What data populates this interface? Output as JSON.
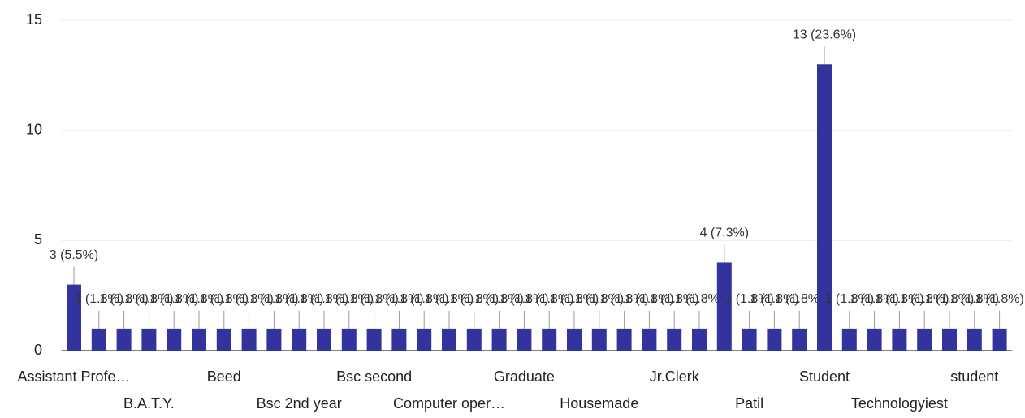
{
  "chart_data": {
    "type": "bar",
    "categories": [
      "Assistant Profe…",
      null,
      null,
      "B.A.T.Y.",
      null,
      null,
      "Beed",
      null,
      null,
      "Bsc 2nd year",
      null,
      null,
      "Bsc second",
      null,
      null,
      "Computer oper…",
      null,
      null,
      "Graduate",
      null,
      null,
      "Housemade",
      null,
      null,
      "Jr.Clerk",
      null,
      null,
      "Patil",
      null,
      null,
      "Student",
      null,
      null,
      "Technologyiest",
      null,
      null,
      "student",
      null
    ],
    "values": [
      3,
      1,
      1,
      1,
      1,
      1,
      1,
      1,
      1,
      1,
      1,
      1,
      1,
      1,
      1,
      1,
      1,
      1,
      1,
      1,
      1,
      1,
      1,
      1,
      1,
      1,
      4,
      1,
      1,
      1,
      13,
      1,
      1,
      1,
      1,
      1,
      1,
      1
    ],
    "value_labels": [
      "3 (5.5%)",
      "1 (1.8%)",
      "1 (1.8%)",
      "1 (1.8%)",
      "1 (1.8%)",
      "1 (1.8%)",
      "1 (1.8%)",
      "1 (1.8%)",
      "1 (1.8%)",
      "1 (1.8%)",
      "1 (1.8%)",
      "1 (1.8%)",
      "1 (1.8%)",
      "1 (1.8%)",
      "1 (1.8%)",
      "1 (1.8%)",
      "1 (1.8%)",
      "1 (1.8%)",
      "1 (1.8%)",
      "1 (1.8%)",
      "1 (1.8%)",
      "1 (1.8%)",
      "1 (1.8%)",
      "1 (1.8%)",
      "1 (1.8%)",
      "1 (1.8%)",
      "4 (7.3%)",
      "1 (1.8%)",
      "1 (1.8%)",
      "1 (1.8%)",
      "13 (23.6%)",
      "1 (1.8%)",
      "1 (1.8%)",
      "1 (1.8%)",
      "1 (1.8%)",
      "1 (1.8%)",
      "1 (1.8%)",
      "1 (1.8%)"
    ],
    "color": "#33339e",
    "ylim": [
      0,
      15
    ],
    "yticks": [
      0,
      5,
      10,
      15
    ],
    "grid": true
  }
}
